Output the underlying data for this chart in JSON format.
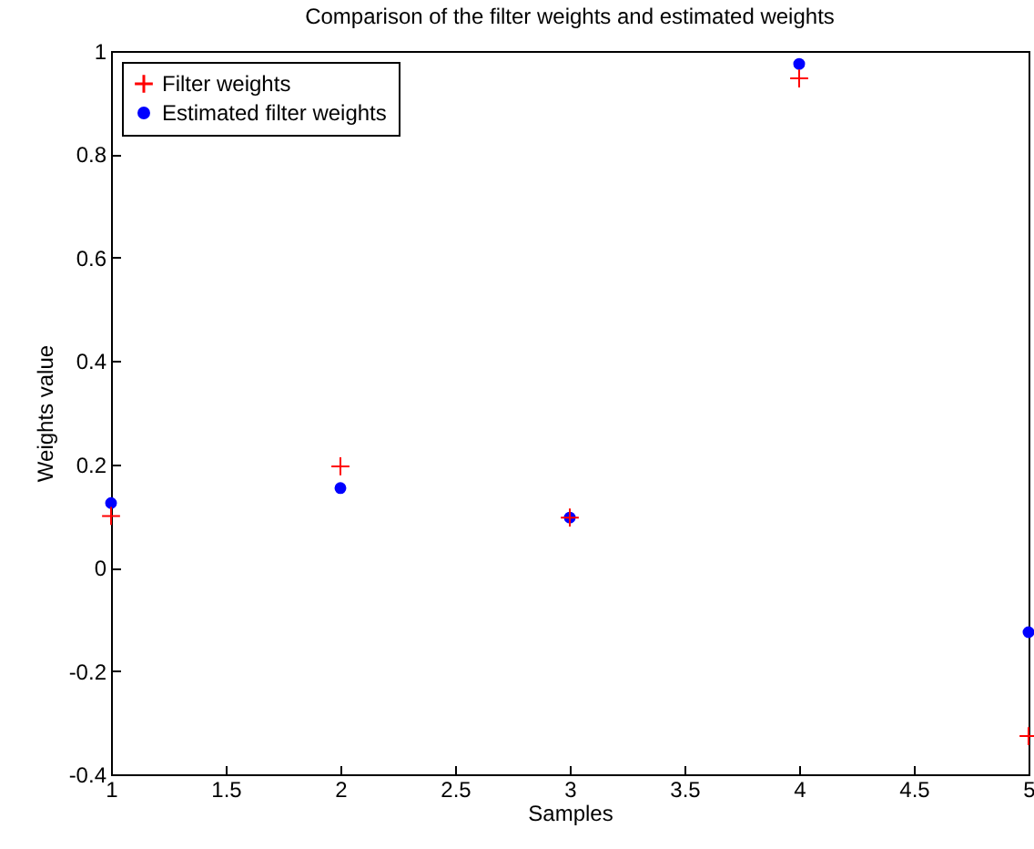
{
  "chart_data": {
    "type": "scatter",
    "title": "Comparison of the filter weights and estimated weights",
    "xlabel": "Samples",
    "ylabel": "Weights value",
    "x": [
      1,
      2,
      3,
      4,
      5
    ],
    "series": [
      {
        "name": "Filter weights",
        "color": "#ff0000",
        "marker": "cross",
        "values": [
          0.1,
          0.196,
          0.097,
          0.947,
          -0.326
        ]
      },
      {
        "name": "Estimated filter weights",
        "color": "#0000ff",
        "marker": "circle",
        "values": [
          0.125,
          0.154,
          0.097,
          0.975,
          -0.125
        ]
      }
    ],
    "xlim": [
      1,
      5
    ],
    "xticks": [
      1,
      1.5,
      2,
      2.5,
      3,
      3.5,
      4,
      4.5,
      5
    ],
    "ylim": [
      -0.4,
      1
    ],
    "yticks": [
      -0.4,
      -0.2,
      0,
      0.2,
      0.4,
      0.6,
      0.8,
      1
    ],
    "grid": false,
    "legend": "top left"
  }
}
